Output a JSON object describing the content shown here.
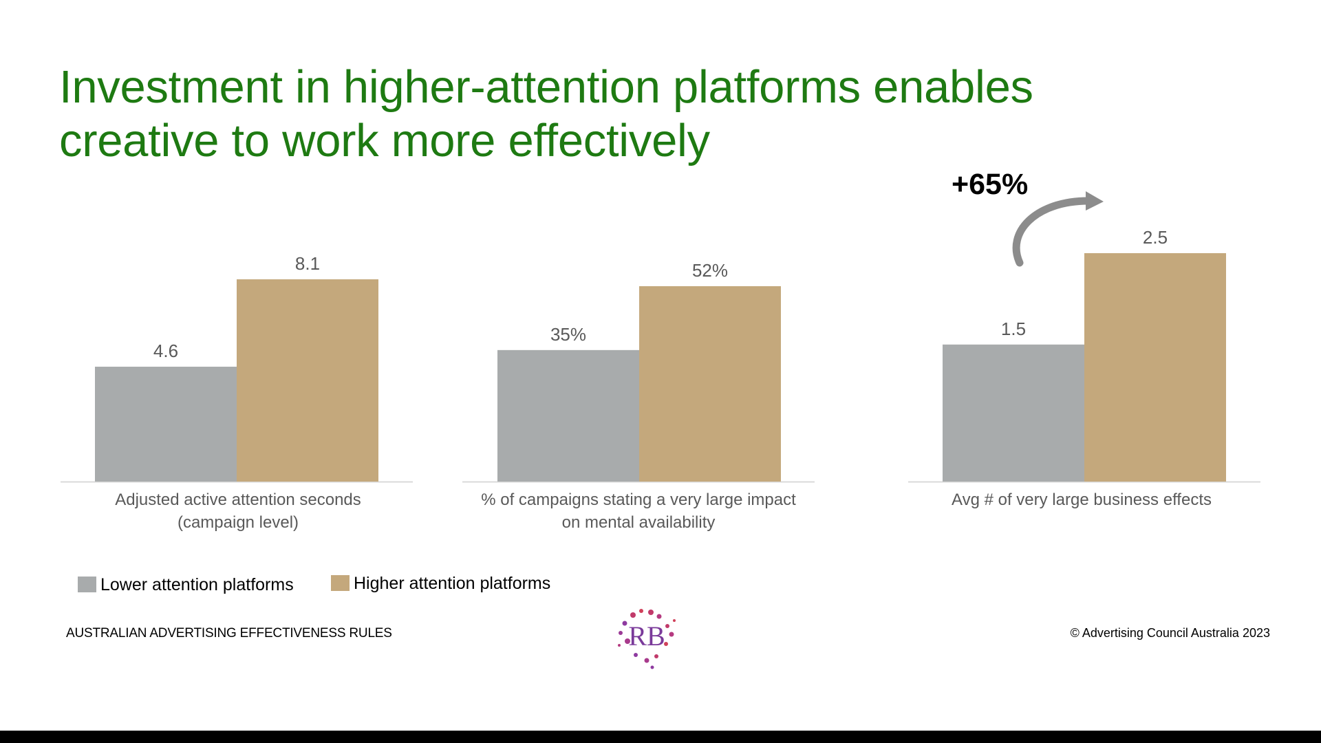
{
  "title": {
    "line1": "Investment in higher-attention platforms enables",
    "line2": "creative to work more effectively"
  },
  "colors": {
    "title": "#1e7a12",
    "lower": "#a8abac",
    "higher": "#c4a87c",
    "axis": "#d9d9d9",
    "label": "#595959"
  },
  "chart_data": [
    {
      "type": "bar",
      "categories": [
        "Lower attention platforms",
        "Higher attention platforms"
      ],
      "values": [
        4.6,
        8.1
      ],
      "value_labels": [
        "4.6",
        "8.1"
      ],
      "xlabel_lines": [
        "Adjusted active attention seconds",
        "(campaign level)"
      ],
      "ylim": [
        0,
        8.1
      ]
    },
    {
      "type": "bar",
      "categories": [
        "Lower attention platforms",
        "Higher attention platforms"
      ],
      "values": [
        35,
        52
      ],
      "value_labels": [
        "35%",
        "52%"
      ],
      "xlabel_lines": [
        "% of campaigns stating a very large impact",
        "on mental availability"
      ],
      "ylim": [
        0,
        52
      ]
    },
    {
      "type": "bar",
      "categories": [
        "Lower attention platforms",
        "Higher attention platforms"
      ],
      "values": [
        1.5,
        2.5
      ],
      "value_labels": [
        "1.5",
        "2.5"
      ],
      "xlabel_lines": [
        "Avg # of very large business effects"
      ],
      "ylim": [
        0,
        2.5
      ],
      "annotation": "+65%"
    }
  ],
  "legend": {
    "lower": "Lower attention platforms",
    "higher": "Higher attention platforms"
  },
  "footer": {
    "left": "AUSTRALIAN ADVERTISING EFFECTIVENESS RULES",
    "right": "© Advertising Council Australia 2023",
    "logo_text": "RB"
  }
}
